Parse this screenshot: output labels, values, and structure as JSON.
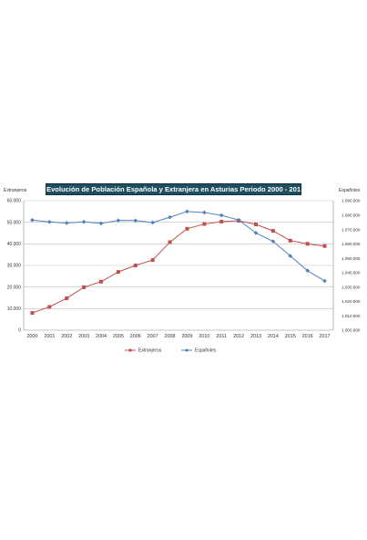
{
  "chart_data": {
    "type": "line",
    "title": "Evolución  de Población  Española y Extranjera en Asturias Periodo 2000 - 2017",
    "ylabel_left": "Extranjeros",
    "ylabel_right": "Españoles",
    "x": [
      "2000",
      "2001",
      "2002",
      "2003",
      "2004",
      "2005",
      "2006",
      "2007",
      "2008",
      "2009",
      "2010",
      "2011",
      "2012",
      "2013",
      "2014",
      "2015",
      "2016",
      "2017"
    ],
    "y_left_lim": [
      0,
      60000
    ],
    "y_left_ticks": [
      "0",
      "10.000",
      "20.000",
      "30.000",
      "40.000",
      "50.000",
      "60.000"
    ],
    "y_right_lim": [
      1000000,
      1090000
    ],
    "y_right_ticks": [
      "1.000.000",
      "1.010.000",
      "1.020.000",
      "1.030.000",
      "1.040.000",
      "1.050.000",
      "1.060.000",
      "1.070.000",
      "1.080.000",
      "1.090.000"
    ],
    "grid": true,
    "legend_position": "bottom-center",
    "series": [
      {
        "name": "Extranjeros",
        "axis": "left",
        "color": "#c0504d",
        "marker": "square",
        "values": [
          8000,
          10800,
          14800,
          19900,
          22500,
          27000,
          30000,
          32500,
          40800,
          47000,
          49200,
          50300,
          50700,
          49000,
          46000,
          41500,
          40000,
          39000
        ]
      },
      {
        "name": "Españoles",
        "axis": "right",
        "color": "#4f81bd",
        "marker": "diamond",
        "values": [
          1076500,
          1075200,
          1074500,
          1075300,
          1074200,
          1076300,
          1076200,
          1074800,
          1078500,
          1082500,
          1081800,
          1079800,
          1076600,
          1067600,
          1061700,
          1051600,
          1041400,
          1034200
        ]
      }
    ]
  }
}
